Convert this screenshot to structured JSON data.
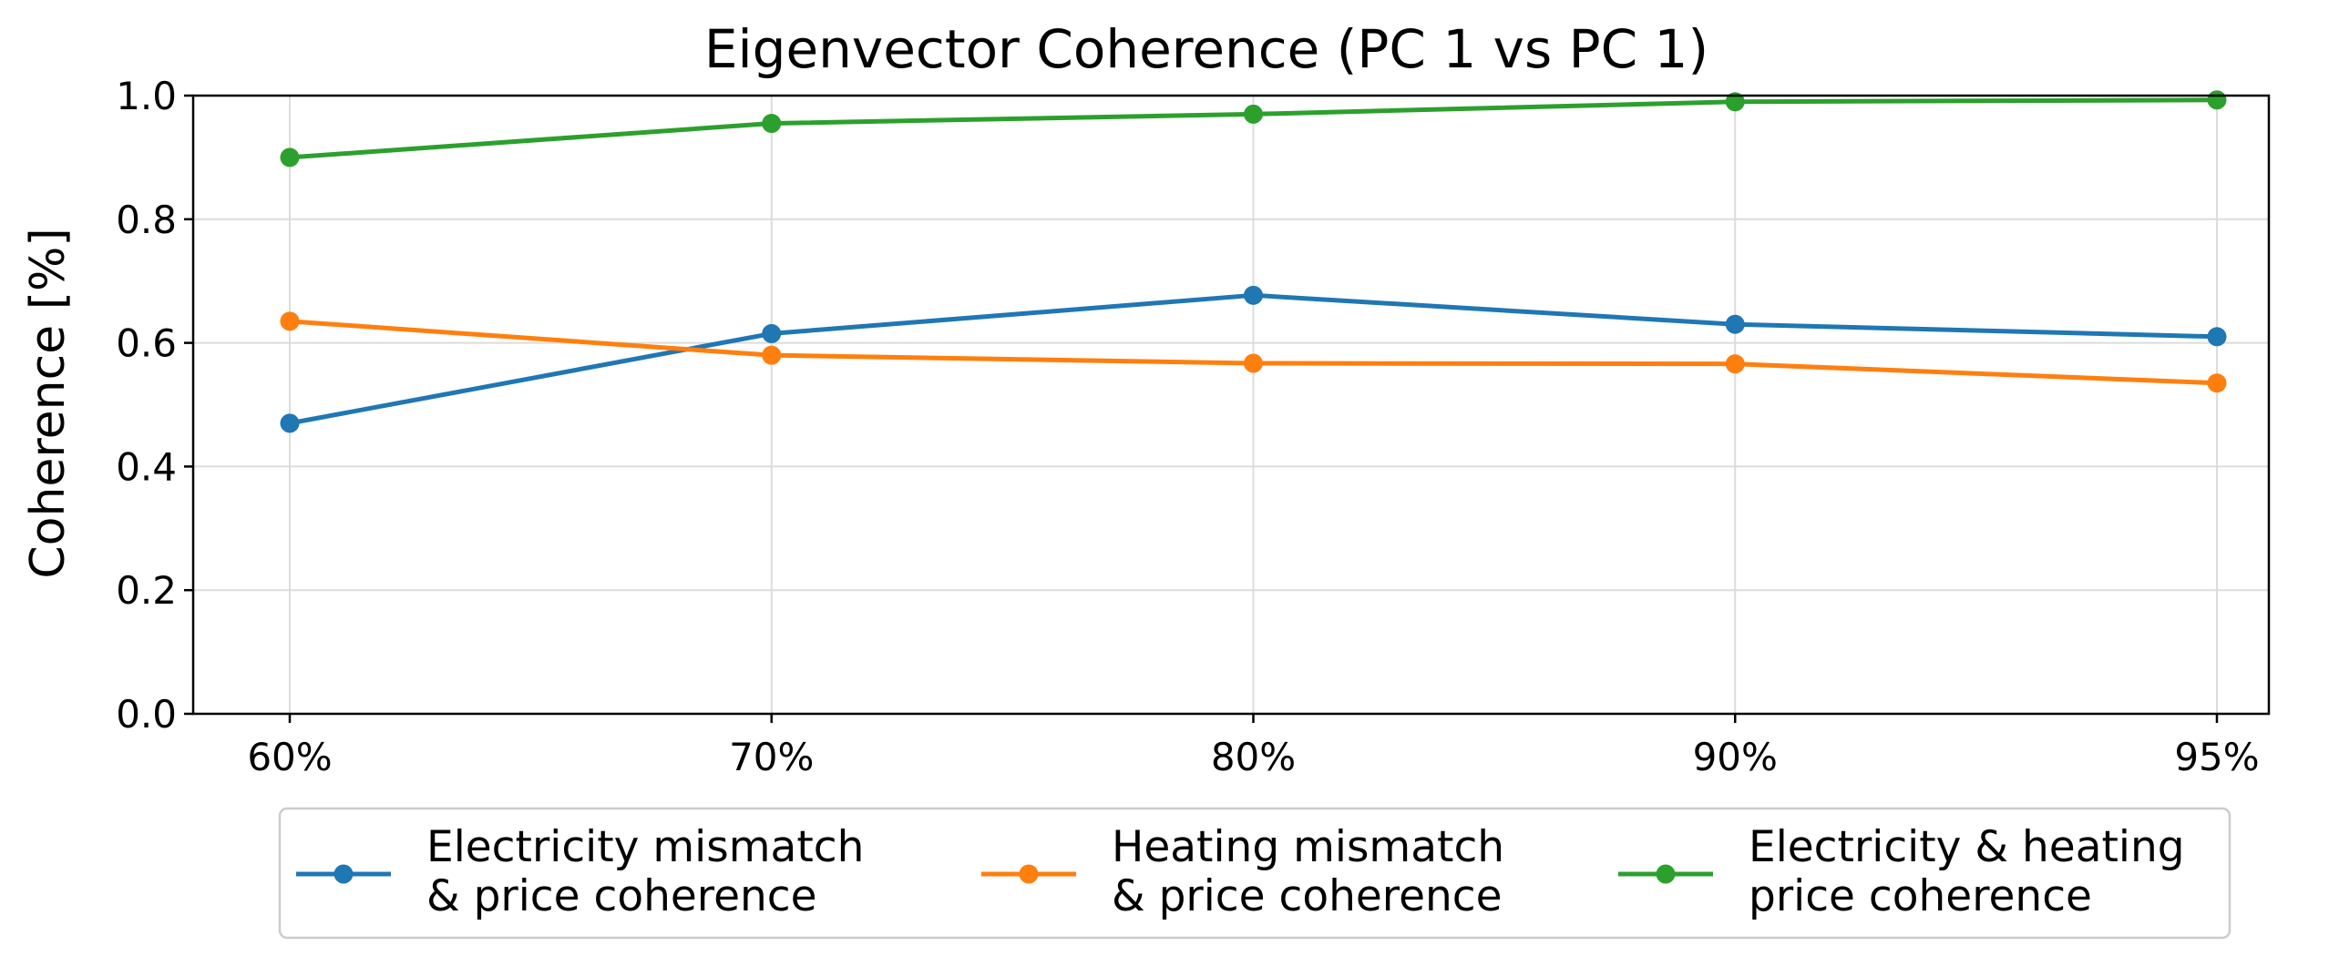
{
  "chart_data": {
    "type": "line",
    "title": "Eigenvector Coherence (PC 1 vs PC 1)",
    "xlabel": "",
    "ylabel": "Coherence [%]",
    "categories": [
      "60%",
      "70%",
      "80%",
      "90%",
      "95%"
    ],
    "ylim": [
      0,
      1
    ],
    "yticks": [
      "0.0",
      "0.2",
      "0.4",
      "0.6",
      "0.8",
      "1.0"
    ],
    "grid": true,
    "legend_position": "bottom-center",
    "series": [
      {
        "name": "Electricity mismatch & price coherence",
        "name_lines": [
          "Electricity mismatch",
          "& price coherence"
        ],
        "color": "#1f77b4",
        "values": [
          0.47,
          0.615,
          0.677,
          0.63,
          0.61
        ]
      },
      {
        "name": "Heating mismatch & price coherence",
        "name_lines": [
          "Heating mismatch",
          "& price coherence"
        ],
        "color": "#ff7f0e",
        "values": [
          0.635,
          0.58,
          0.567,
          0.566,
          0.535
        ]
      },
      {
        "name": "Electricity & heating price coherence",
        "name_lines": [
          "Electricity & heating",
          "price coherence"
        ],
        "color": "#2ca02c",
        "values": [
          0.9,
          0.955,
          0.97,
          0.99,
          0.993
        ]
      }
    ]
  }
}
